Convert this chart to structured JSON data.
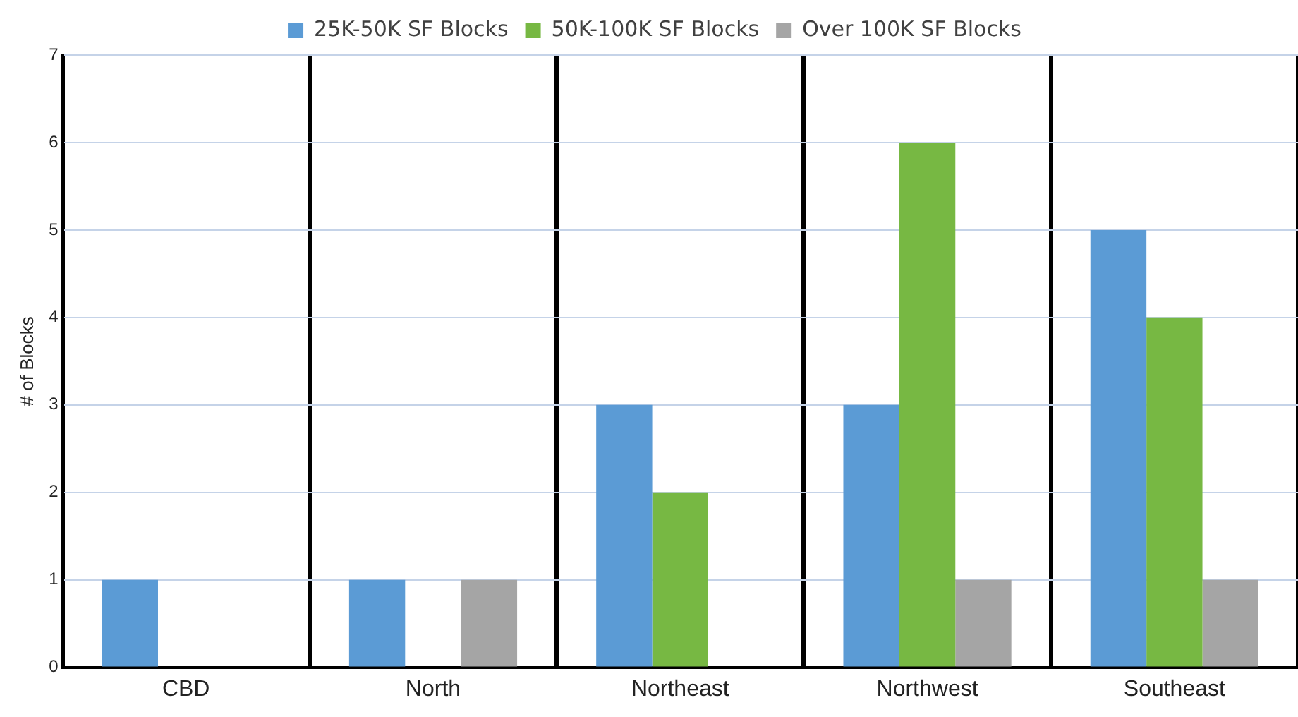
{
  "chart_data": {
    "type": "bar",
    "ylabel": "# of Blocks",
    "categories": [
      "CBD",
      "North",
      "Northeast",
      "Northwest",
      "Southeast"
    ],
    "series": [
      {
        "name": "25K-50K SF Blocks",
        "color": "#5b9bd5",
        "values": [
          1,
          1,
          3,
          3,
          5
        ]
      },
      {
        "name": "50K-100K SF Blocks",
        "color": "#77b843",
        "values": [
          0,
          0,
          2,
          6,
          4
        ]
      },
      {
        "name": "Over 100K SF Blocks",
        "color": "#a5a5a5",
        "values": [
          0,
          1,
          0,
          1,
          1
        ]
      }
    ],
    "ylim": [
      0,
      7
    ],
    "yticks": [
      0,
      1,
      2,
      3,
      4,
      5,
      6,
      7
    ],
    "grid": true,
    "legend": "top"
  }
}
